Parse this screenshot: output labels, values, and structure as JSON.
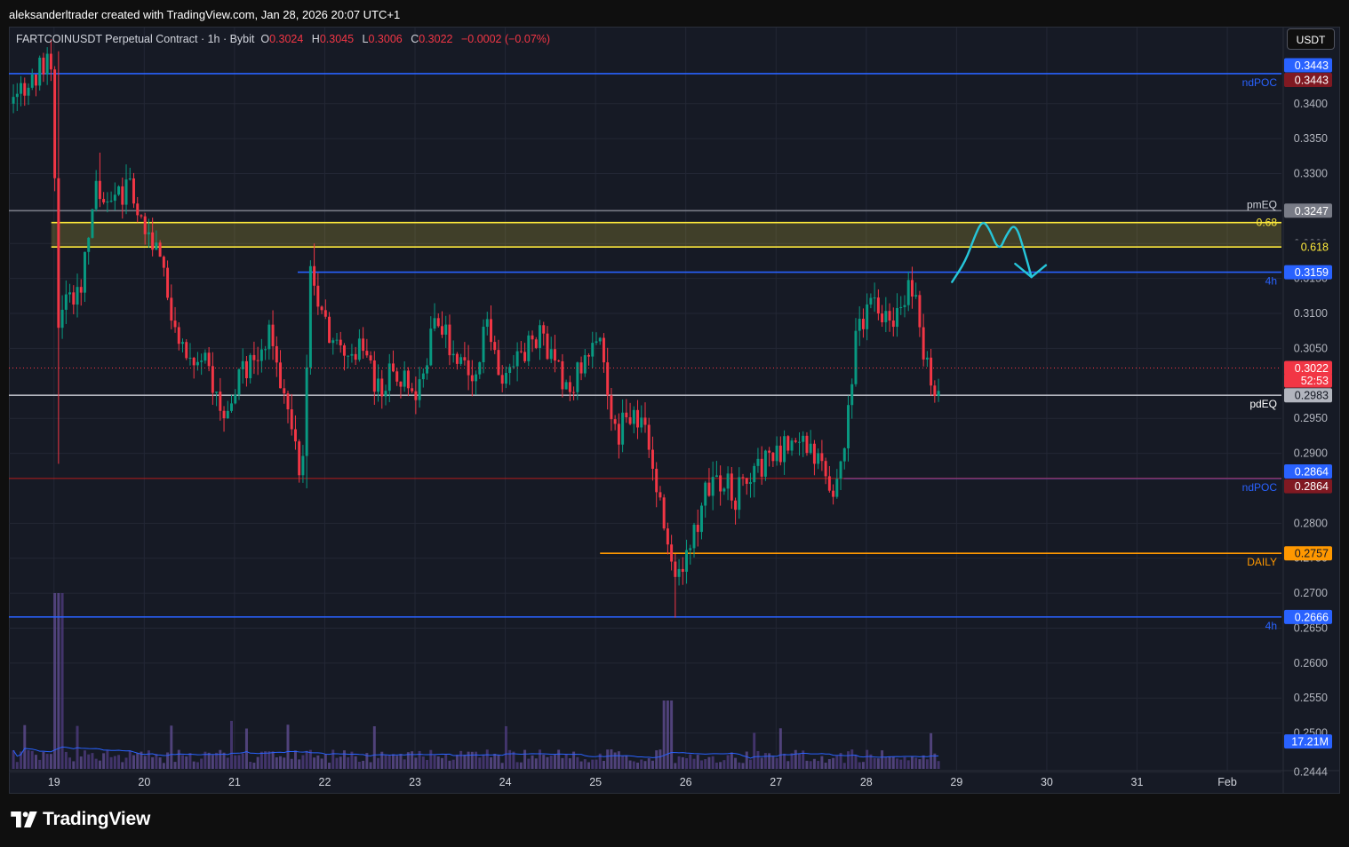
{
  "attribution": "aleksanderltrader created with TradingView.com, Jan 28, 2026 20:07 UTC+1",
  "legend": {
    "symbol": "FARTCOINUSDT Perpetual Contract · 1h · Bybit",
    "open_label": "O",
    "open": "0.3024",
    "high_label": "H",
    "high": "0.3045",
    "low_label": "L",
    "low": "0.3006",
    "close_label": "C",
    "close": "0.3022",
    "change": "−0.0002 (−0.07%)"
  },
  "unit_button": "USDT",
  "brand": "TradingView",
  "colors": {
    "up": "#089981",
    "down": "#f23645",
    "background": "#161a25",
    "blue": "#2962ff",
    "yellow": "#ffeb3b",
    "orange": "#ff9800",
    "drawing": "#26c6da",
    "volume": "#7e57c2"
  },
  "chart_data": {
    "type": "candlestick",
    "interval": "1h",
    "y_axis": {
      "min": 0.245,
      "max": 0.35,
      "ticks": [
        "0.3400",
        "0.3350",
        "0.3300",
        "0.3200",
        "0.3150",
        "0.3100",
        "0.3050",
        "0.2950",
        "0.2900",
        "0.2800",
        "0.2750",
        "0.2700",
        "0.2650",
        "0.2600",
        "0.2550",
        "0.2500",
        "0.2444"
      ]
    },
    "x_axis": {
      "start_day": 18.5,
      "end_day": 32.6,
      "ticks": [
        {
          "day": 19,
          "label": "19"
        },
        {
          "day": 20,
          "label": "20"
        },
        {
          "day": 21,
          "label": "21"
        },
        {
          "day": 22,
          "label": "22"
        },
        {
          "day": 23,
          "label": "23"
        },
        {
          "day": 24,
          "label": "24"
        },
        {
          "day": 25,
          "label": "25"
        },
        {
          "day": 26,
          "label": "26"
        },
        {
          "day": 27,
          "label": "27"
        },
        {
          "day": 28,
          "label": "28"
        },
        {
          "day": 29,
          "label": "29"
        },
        {
          "day": 30,
          "label": "30"
        },
        {
          "day": 31,
          "label": "31"
        },
        {
          "day": 32,
          "label": "Feb"
        }
      ]
    },
    "price_path": [
      {
        "day": 18.55,
        "price": 0.34
      },
      {
        "day": 18.75,
        "price": 0.344
      },
      {
        "day": 18.97,
        "price": 0.347
      },
      {
        "day": 19.05,
        "price": 0.31
      },
      {
        "day": 19.12,
        "price": 0.313
      },
      {
        "day": 19.3,
        "price": 0.313
      },
      {
        "day": 19.45,
        "price": 0.329
      },
      {
        "day": 19.55,
        "price": 0.324
      },
      {
        "day": 19.7,
        "price": 0.327
      },
      {
        "day": 19.85,
        "price": 0.328
      },
      {
        "day": 20.0,
        "price": 0.323
      },
      {
        "day": 20.1,
        "price": 0.32
      },
      {
        "day": 20.25,
        "price": 0.313
      },
      {
        "day": 20.45,
        "price": 0.305
      },
      {
        "day": 20.7,
        "price": 0.302
      },
      {
        "day": 20.85,
        "price": 0.296
      },
      {
        "day": 21.0,
        "price": 0.299
      },
      {
        "day": 21.2,
        "price": 0.304
      },
      {
        "day": 21.4,
        "price": 0.307
      },
      {
        "day": 21.6,
        "price": 0.295
      },
      {
        "day": 21.75,
        "price": 0.287
      },
      {
        "day": 21.85,
        "price": 0.318
      },
      {
        "day": 22.0,
        "price": 0.308
      },
      {
        "day": 22.2,
        "price": 0.304
      },
      {
        "day": 22.4,
        "price": 0.306
      },
      {
        "day": 22.6,
        "price": 0.299
      },
      {
        "day": 22.8,
        "price": 0.302
      },
      {
        "day": 23.0,
        "price": 0.299
      },
      {
        "day": 23.25,
        "price": 0.309
      },
      {
        "day": 23.45,
        "price": 0.304
      },
      {
        "day": 23.65,
        "price": 0.299
      },
      {
        "day": 23.8,
        "price": 0.309
      },
      {
        "day": 23.95,
        "price": 0.301
      },
      {
        "day": 24.2,
        "price": 0.305
      },
      {
        "day": 24.4,
        "price": 0.307
      },
      {
        "day": 24.6,
        "price": 0.301
      },
      {
        "day": 24.75,
        "price": 0.299
      },
      {
        "day": 24.9,
        "price": 0.306
      },
      {
        "day": 25.05,
        "price": 0.305
      },
      {
        "day": 25.2,
        "price": 0.292
      },
      {
        "day": 25.4,
        "price": 0.296
      },
      {
        "day": 25.55,
        "price": 0.294
      },
      {
        "day": 25.7,
        "price": 0.284
      },
      {
        "day": 25.85,
        "price": 0.272
      },
      {
        "day": 26.05,
        "price": 0.276
      },
      {
        "day": 26.2,
        "price": 0.284
      },
      {
        "day": 26.4,
        "price": 0.286
      },
      {
        "day": 26.55,
        "price": 0.284
      },
      {
        "day": 26.75,
        "price": 0.288
      },
      {
        "day": 27.0,
        "price": 0.289
      },
      {
        "day": 27.2,
        "price": 0.293
      },
      {
        "day": 27.35,
        "price": 0.29
      },
      {
        "day": 27.5,
        "price": 0.288
      },
      {
        "day": 27.65,
        "price": 0.285
      },
      {
        "day": 27.8,
        "price": 0.295
      },
      {
        "day": 27.9,
        "price": 0.309
      },
      {
        "day": 28.1,
        "price": 0.311
      },
      {
        "day": 28.3,
        "price": 0.308
      },
      {
        "day": 28.45,
        "price": 0.314
      },
      {
        "day": 28.55,
        "price": 0.311
      },
      {
        "day": 28.65,
        "price": 0.303
      },
      {
        "day": 28.78,
        "price": 0.299
      },
      {
        "day": 28.84,
        "price": 0.3022
      }
    ],
    "last_price_day": 28.84,
    "levels": [
      {
        "price": 0.3443,
        "color": "#2962ff",
        "x_start_day": 18.5,
        "label": "ndPOC",
        "tag": "0.3443",
        "style": "solid"
      },
      {
        "price": 0.3247,
        "color": "#787b86",
        "x_start_day": 18.5,
        "label": "pmEQ",
        "tag": "0.3247",
        "style": "solid"
      },
      {
        "price": 0.323,
        "color": "#ffeb3b",
        "x_start_day": 18.97,
        "label": "0.68",
        "tag": "",
        "style": "solid"
      },
      {
        "price": 0.3195,
        "color": "#ffeb3b",
        "x_start_day": 18.97,
        "label": "0.618",
        "tag": "",
        "style": "solid"
      },
      {
        "price": 0.3159,
        "color": "#2962ff",
        "x_start_day": 21.7,
        "label": "4h",
        "tag": "0.3159",
        "style": "solid"
      },
      {
        "price": 0.2983,
        "color": "#b2b5be",
        "x_start_day": 18.5,
        "label": "pdEQ",
        "tag": "0.2983",
        "style": "solid"
      },
      {
        "price": 0.2864,
        "color": "#2962ff",
        "x_start_day": 27.75,
        "label": "ndPOC",
        "tag": "0.2864",
        "style": "solid"
      },
      {
        "price": 0.2864,
        "color": "#b71c1c",
        "x_start_day": 18.5,
        "label": "",
        "tag": "0.2864",
        "style": "solid"
      },
      {
        "price": 0.2757,
        "color": "#ff9800",
        "x_start_day": 25.05,
        "label": "DAILY",
        "tag": "0.2757",
        "style": "solid"
      },
      {
        "price": 0.2666,
        "color": "#2962ff",
        "x_start_day": 18.5,
        "label": "4h",
        "tag": "0.2666",
        "style": "solid"
      }
    ],
    "price_tags": [
      {
        "text": "0.3443",
        "price": 0.3455,
        "bg": "#2962ff"
      },
      {
        "text": "0.3443",
        "price": 0.3434,
        "bg": "#801922"
      },
      {
        "text": "0.3247",
        "price": 0.3247,
        "bg": "#787b86"
      },
      {
        "text": "0.618",
        "price": 0.3195,
        "bg": "#161a25",
        "fg": "#ffeb3b"
      },
      {
        "text": "0.3159",
        "price": 0.3159,
        "bg": "#2962ff"
      },
      {
        "text": "0.3022",
        "price": 0.3022,
        "bg": "#f23645"
      },
      {
        "text": "52:53",
        "price": 0.3004,
        "bg": "#f23645"
      },
      {
        "text": "0.2983",
        "price": 0.2983,
        "bg": "#b2b5be",
        "fg": "#131722"
      },
      {
        "text": "0.2864",
        "price": 0.2874,
        "bg": "#2962ff"
      },
      {
        "text": "0.2864",
        "price": 0.2853,
        "bg": "#801922"
      },
      {
        "text": "0.2757",
        "price": 0.2757,
        "bg": "#ff9800",
        "fg": "#131722"
      },
      {
        "text": "0.2666",
        "price": 0.2666,
        "bg": "#2962ff"
      },
      {
        "text": "17.21M",
        "price": 0.2488,
        "bg": "#2962ff"
      }
    ],
    "zone": {
      "top": 0.323,
      "bottom": 0.3195,
      "start_day": 18.97
    },
    "drawing_path": [
      {
        "day": 28.95,
        "price": 0.3145
      },
      {
        "day": 29.1,
        "price": 0.3175
      },
      {
        "day": 29.2,
        "price": 0.321
      },
      {
        "day": 29.28,
        "price": 0.3232
      },
      {
        "day": 29.35,
        "price": 0.3225
      },
      {
        "day": 29.47,
        "price": 0.3188
      },
      {
        "day": 29.55,
        "price": 0.3212
      },
      {
        "day": 29.65,
        "price": 0.323
      },
      {
        "day": 29.75,
        "price": 0.319
      },
      {
        "day": 29.83,
        "price": 0.3152
      }
    ],
    "drawing_arrow": [
      {
        "day": 29.65,
        "price": 0.3171
      },
      {
        "day": 29.83,
        "price": 0.3152
      },
      {
        "day": 29.99,
        "price": 0.3169
      }
    ],
    "volume": {
      "last_label": "17.21M"
    }
  }
}
